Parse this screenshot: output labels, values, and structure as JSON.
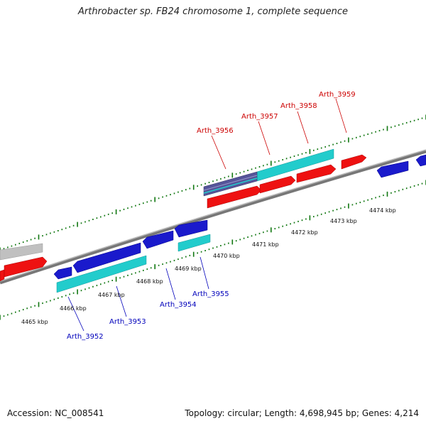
{
  "header": {
    "title": "Arthrobacter sp. FB24 chromosome 1, complete sequence"
  },
  "footer": {
    "accession": "Accession: NC_008541",
    "topology": "Topology: circular; Length: 4,698,945 bp; Genes: 4,214"
  },
  "colors": {
    "forward_cds": "#ee1111",
    "reverse_cds": "#1a1acc",
    "rna": "#22cccc",
    "other": "#c0c0c0",
    "backbone": "#888888",
    "ticks": "#117711",
    "label_forward": "#cc0000",
    "label_reverse": "#0000bb"
  },
  "scale_labels": [
    "4465 kbp",
    "4466 kbp",
    "4467 kbp",
    "4468 kbp",
    "4469 kbp",
    "4470 kbp",
    "4471 kbp",
    "4472 kbp",
    "4473 kbp",
    "4474 kbp"
  ],
  "forward_labels": [
    "Arth_3956",
    "Arth_3957",
    "Arth_3958",
    "Arth_3959"
  ],
  "reverse_labels": [
    "Arth_3952",
    "Arth_3953",
    "Arth_3954",
    "Arth_3955"
  ]
}
